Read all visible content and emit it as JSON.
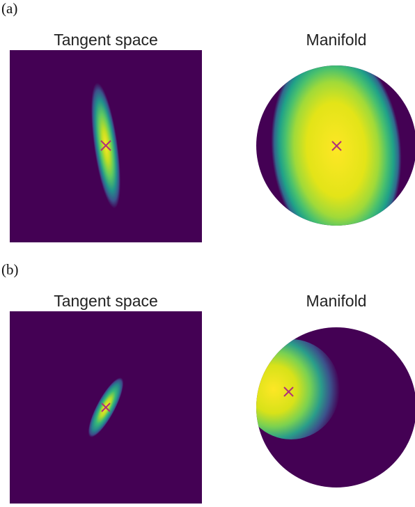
{
  "panels": [
    {
      "label": "(a)",
      "left_title": "Tangent space",
      "right_title": "Manifold"
    },
    {
      "label": "(b)",
      "left_title": "Tangent space",
      "right_title": "Manifold"
    }
  ],
  "colors": {
    "background": "#440154",
    "viridis_low": "#440154",
    "viridis_mid": "#21918c",
    "viridis_high": "#fde725",
    "marker": "#b0307a"
  },
  "marker": {
    "symbol": "×"
  }
}
